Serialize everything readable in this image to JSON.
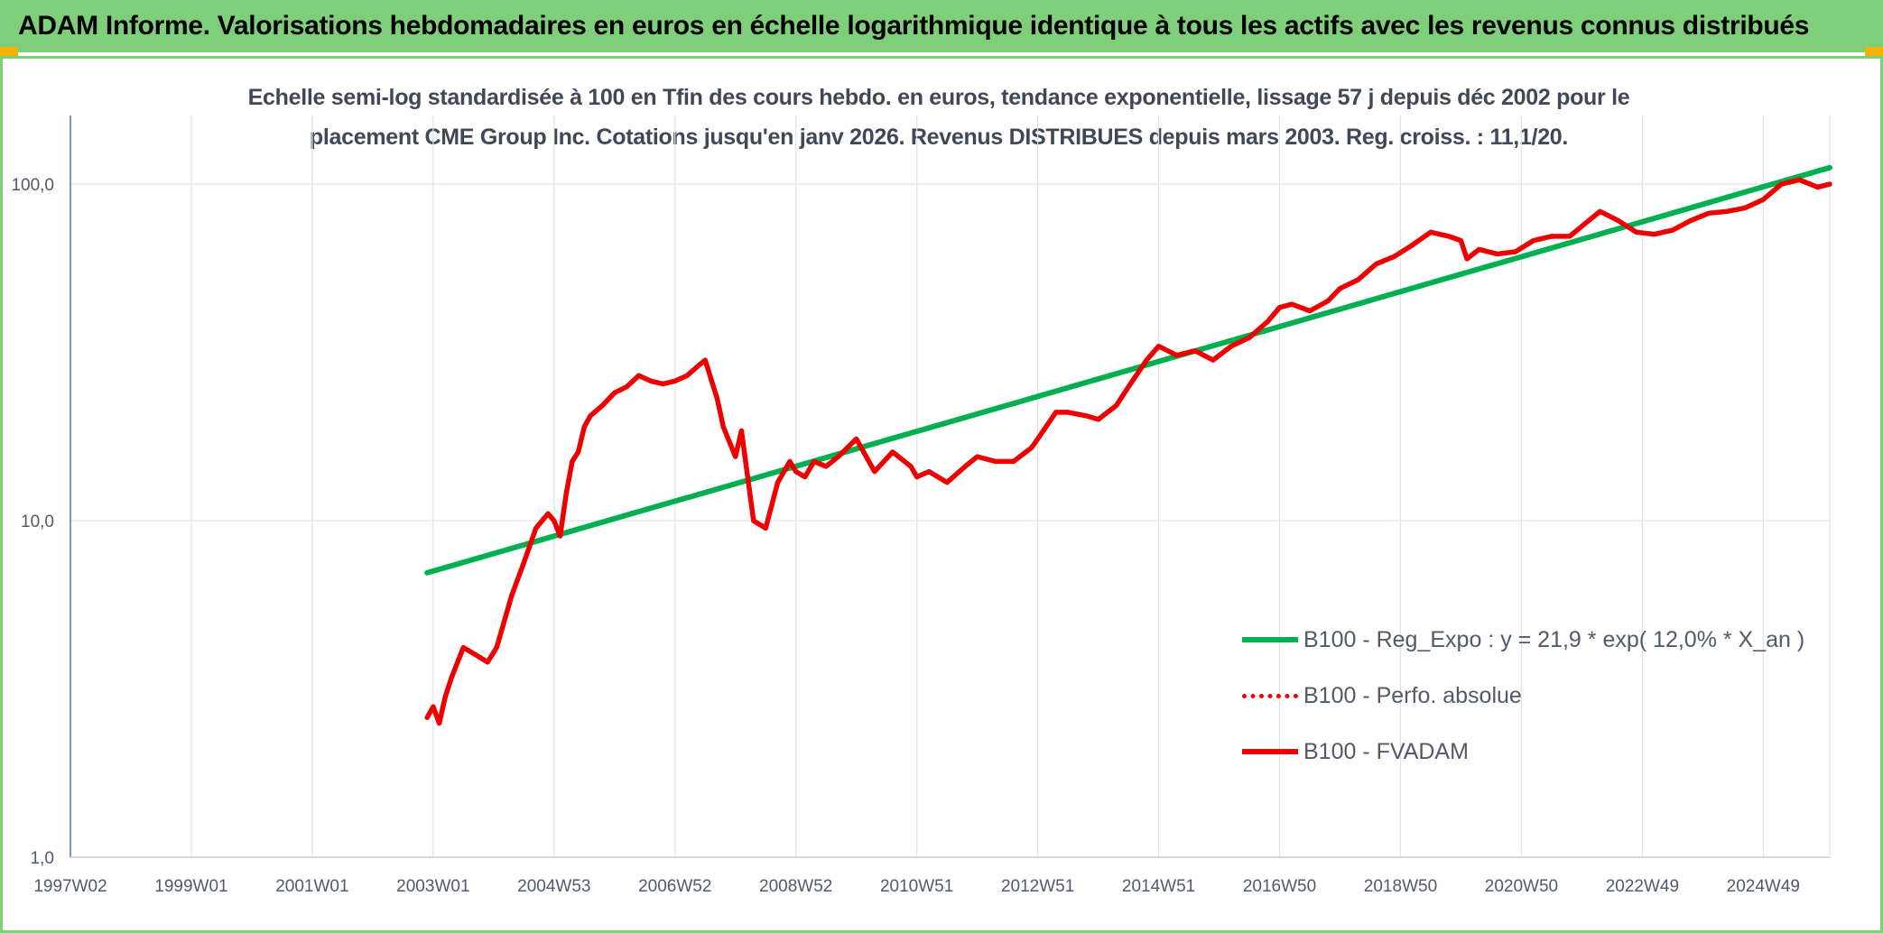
{
  "header": {
    "title": "ADAM Informe. Valorisations hebdomadaires en euros en échelle logarithmique identique à tous les actifs avec les revenus connus distribués"
  },
  "colors": {
    "banner": "#7fcf7a",
    "trend": "#00b050",
    "series": "#ee0000",
    "grid": "#dde3ea",
    "axis": "#4a72b8"
  },
  "chart_data": {
    "type": "line",
    "title_lines": [
      "Echelle semi-log standardisée à 100 en Tfin des cours hebdo. en euros, tendance exponentielle, lissage 57 j depuis déc 2002 pour le",
      "placement CME Group Inc. Cotations jusqu'en janv 2026. Revenus DISTRIBUES depuis mars 2003. Reg. croiss. : 11,1/20."
    ],
    "yscale": "log",
    "ylim": [
      1,
      160
    ],
    "xlim": [
      1997.0,
      2026.1
    ],
    "grid": true,
    "legend_position": "bottom-right",
    "y_ticks": [
      {
        "label": "1,0",
        "value": 1
      },
      {
        "label": "10,0",
        "value": 10
      },
      {
        "label": "100,0",
        "value": 100
      }
    ],
    "x_ticks": [
      {
        "label": "1997W02",
        "value": 1997.0
      },
      {
        "label": "1999W01",
        "value": 1999.0
      },
      {
        "label": "2001W01",
        "value": 2001.0
      },
      {
        "label": "2003W01",
        "value": 2003.0
      },
      {
        "label": "2004W53",
        "value": 2005.0
      },
      {
        "label": "2006W52",
        "value": 2007.0
      },
      {
        "label": "2008W52",
        "value": 2009.0
      },
      {
        "label": "2010W51",
        "value": 2011.0
      },
      {
        "label": "2012W51",
        "value": 2013.0
      },
      {
        "label": "2014W51",
        "value": 2015.0
      },
      {
        "label": "2016W50",
        "value": 2017.0
      },
      {
        "label": "2018W50",
        "value": 2019.0
      },
      {
        "label": "2020W50",
        "value": 2021.0
      },
      {
        "label": "2022W49",
        "value": 2023.0
      },
      {
        "label": "2024W49",
        "value": 2025.0
      }
    ],
    "series": [
      {
        "name": "B100 - Reg_Expo : y = 21,9 * exp( 12,0% *  X_an )",
        "style": "solid",
        "x": [
          2002.9,
          2026.1
        ],
        "y": [
          7.0,
          112
        ]
      },
      {
        "name": "B100 - Perfo. absolue",
        "style": "dotted",
        "x": [],
        "y": []
      },
      {
        "name": "B100 - FVADAM",
        "style": "solid",
        "x": [
          2002.9,
          2003.0,
          2003.1,
          2003.2,
          2003.3,
          2003.5,
          2003.7,
          2003.9,
          2004.05,
          2004.3,
          2004.5,
          2004.7,
          2004.9,
          2005.0,
          2005.1,
          2005.2,
          2005.3,
          2005.4,
          2005.5,
          2005.6,
          2005.8,
          2006.0,
          2006.2,
          2006.4,
          2006.6,
          2006.8,
          2007.0,
          2007.2,
          2007.4,
          2007.5,
          2007.7,
          2007.8,
          2008.0,
          2008.1,
          2008.3,
          2008.5,
          2008.7,
          2008.9,
          2009.0,
          2009.15,
          2009.3,
          2009.5,
          2009.7,
          2010.0,
          2010.3,
          2010.6,
          2010.9,
          2011.0,
          2011.2,
          2011.5,
          2011.8,
          2012.0,
          2012.3,
          2012.6,
          2012.9,
          2013.0,
          2013.3,
          2013.5,
          2013.8,
          2014.0,
          2014.3,
          2014.5,
          2014.8,
          2015.0,
          2015.3,
          2015.6,
          2015.9,
          2016.2,
          2016.5,
          2016.8,
          2017.0,
          2017.2,
          2017.5,
          2017.8,
          2018.0,
          2018.3,
          2018.6,
          2018.9,
          2019.2,
          2019.5,
          2019.8,
          2020.0,
          2020.1,
          2020.3,
          2020.6,
          2020.9,
          2021.2,
          2021.5,
          2021.8,
          2022.0,
          2022.3,
          2022.6,
          2022.9,
          2023.2,
          2023.5,
          2023.8,
          2024.1,
          2024.4,
          2024.7,
          2025.0,
          2025.3,
          2025.6,
          2025.9,
          2026.1
        ],
        "y": [
          2.6,
          2.8,
          2.5,
          3.0,
          3.4,
          4.2,
          4.0,
          3.8,
          4.2,
          6.0,
          7.5,
          9.5,
          10.5,
          10.0,
          9.0,
          12.0,
          15.0,
          16.0,
          19.0,
          20.5,
          22.0,
          24.0,
          25.0,
          27.0,
          26.0,
          25.5,
          26.0,
          27.0,
          29.0,
          30.0,
          23.0,
          19.0,
          15.5,
          18.5,
          10.0,
          9.5,
          13.0,
          15.0,
          14.0,
          13.5,
          15.0,
          14.5,
          15.5,
          17.5,
          14.0,
          16.0,
          14.5,
          13.5,
          14.0,
          13.0,
          14.5,
          15.5,
          15.0,
          15.0,
          16.5,
          17.5,
          21.0,
          21.0,
          20.5,
          20.0,
          22.0,
          25.0,
          30.0,
          33.0,
          31.0,
          32.0,
          30.0,
          33.0,
          35.0,
          39.0,
          43.0,
          44.0,
          42.0,
          45.0,
          49.0,
          52.0,
          58.0,
          61.0,
          66.0,
          72.0,
          70.0,
          68.0,
          60.0,
          64.0,
          62.0,
          63.0,
          68.0,
          70.0,
          70.0,
          75.0,
          83.0,
          78.0,
          72.0,
          71.0,
          73.0,
          78.0,
          82.0,
          83.0,
          85.0,
          90.0,
          100.0,
          103.0,
          98.0,
          100.0
        ]
      }
    ]
  }
}
